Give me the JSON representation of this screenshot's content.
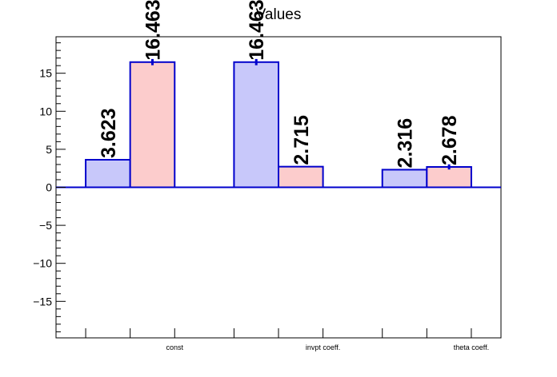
{
  "chart_data": {
    "type": "bar",
    "title": "Values",
    "xlabel": "",
    "ylabel": "",
    "categories": [
      "const",
      "invpt coeff.",
      "theta coeff."
    ],
    "series": [
      {
        "values": [
          3.623,
          16.463,
          2.316
        ],
        "value_labels": [
          "3.623",
          "16.463",
          "2.316"
        ],
        "errors": [
          0,
          0.25,
          0
        ],
        "color": "#c8c8fa"
      },
      {
        "values": [
          16.463,
          2.715,
          2.678
        ],
        "value_labels": [
          "16.463",
          "2.715",
          "2.678"
        ],
        "errors": [
          0.25,
          0,
          0.18
        ],
        "color": "#fccccc"
      }
    ],
    "ylim": [
      -19.8,
      19.8
    ],
    "yticks": [
      -15,
      -10,
      -5,
      0,
      5,
      10,
      15
    ],
    "ytick_labels": [
      "−15",
      "−10",
      "−5",
      "0",
      "5",
      "10",
      "15"
    ],
    "grid": false,
    "legend": "none",
    "edge_color": "#0000cc"
  }
}
